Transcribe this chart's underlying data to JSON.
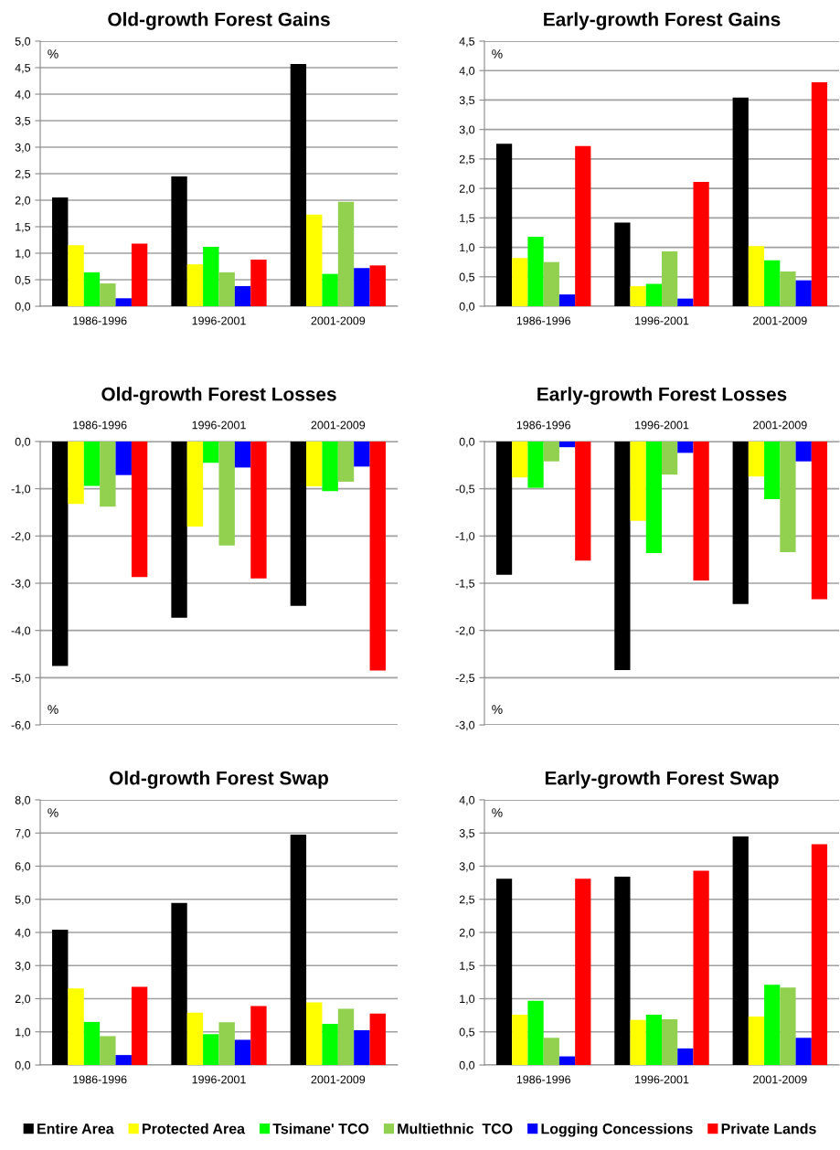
{
  "chart_data": [
    {
      "type": "bar",
      "title": "Old-growth Forest Gains",
      "categories": [
        "1986-1996",
        "1996-2001",
        "2001-2009"
      ],
      "annotations": [
        "%"
      ],
      "ylim": [
        0,
        5
      ],
      "yticks": [
        {
          "value": 0,
          "label": "0,0"
        },
        {
          "value": 0.5,
          "label": "0,5"
        },
        {
          "value": 1,
          "label": "1,0"
        },
        {
          "value": 1.5,
          "label": "1,5"
        },
        {
          "value": 2,
          "label": "2,0"
        },
        {
          "value": 2.5,
          "label": "2,5"
        },
        {
          "value": 3,
          "label": "3,0"
        },
        {
          "value": 3.5,
          "label": "3,5"
        },
        {
          "value": 4,
          "label": "4,0"
        },
        {
          "value": 4.5,
          "label": "4,5"
        },
        {
          "value": 5,
          "label": "5,0"
        }
      ],
      "grid": "y",
      "series": [
        {
          "color": "#000000",
          "values": [
            2.05,
            2.45,
            4.57
          ]
        },
        {
          "color": "#ffff00",
          "values": [
            1.15,
            0.79,
            1.73
          ]
        },
        {
          "color": "#00ff00",
          "values": [
            0.64,
            1.12,
            0.61
          ]
        },
        {
          "color": "#92d050",
          "values": [
            0.43,
            0.64,
            1.97
          ]
        },
        {
          "color": "#0000ff",
          "values": [
            0.15,
            0.38,
            0.72
          ]
        },
        {
          "color": "#ff0000",
          "values": [
            1.18,
            0.88,
            0.77
          ]
        }
      ]
    },
    {
      "type": "bar",
      "title": "Early-growth Forest Gains",
      "categories": [
        "1986-1996",
        "1996-2001",
        "2001-2009"
      ],
      "annotations": [
        "%"
      ],
      "ylim": [
        0,
        4.5
      ],
      "yticks": [
        {
          "value": 0,
          "label": "0,0"
        },
        {
          "value": 0.5,
          "label": "0,5"
        },
        {
          "value": 1,
          "label": "1,0"
        },
        {
          "value": 1.5,
          "label": "1,5"
        },
        {
          "value": 2,
          "label": "2,0"
        },
        {
          "value": 2.5,
          "label": "2,5"
        },
        {
          "value": 3,
          "label": "3,0"
        },
        {
          "value": 3.5,
          "label": "3,5"
        },
        {
          "value": 4,
          "label": "4,0"
        },
        {
          "value": 4.5,
          "label": "4,5"
        }
      ],
      "grid": "y",
      "series": [
        {
          "color": "#000000",
          "values": [
            2.76,
            1.42,
            3.54
          ]
        },
        {
          "color": "#ffff00",
          "values": [
            0.82,
            0.34,
            1.02
          ]
        },
        {
          "color": "#00ff00",
          "values": [
            1.18,
            0.38,
            0.78
          ]
        },
        {
          "color": "#92d050",
          "values": [
            0.75,
            0.93,
            0.59
          ]
        },
        {
          "color": "#0000ff",
          "values": [
            0.2,
            0.13,
            0.44
          ]
        },
        {
          "color": "#ff0000",
          "values": [
            2.72,
            2.11,
            3.8
          ]
        }
      ]
    },
    {
      "type": "bar",
      "title": "Old-growth Forest Losses",
      "categories": [
        "1986-1996",
        "1996-2001",
        "2001-2009"
      ],
      "annotations": [
        "%"
      ],
      "ylim": [
        -6,
        0
      ],
      "yticks": [
        {
          "value": -6,
          "label": "-6,0"
        },
        {
          "value": -5,
          "label": "-5,0"
        },
        {
          "value": -4,
          "label": "-4,0"
        },
        {
          "value": -3,
          "label": "-3,0"
        },
        {
          "value": -2,
          "label": "-2,0"
        },
        {
          "value": -1,
          "label": "-1,0"
        },
        {
          "value": 0,
          "label": "0,0"
        }
      ],
      "grid": "y",
      "series": [
        {
          "color": "#000000",
          "values": [
            -4.75,
            -3.73,
            -3.48
          ]
        },
        {
          "color": "#ffff00",
          "values": [
            -1.32,
            -1.8,
            -0.95
          ]
        },
        {
          "color": "#00ff00",
          "values": [
            -0.94,
            -0.45,
            -1.05
          ]
        },
        {
          "color": "#92d050",
          "values": [
            -1.38,
            -2.2,
            -0.85
          ]
        },
        {
          "color": "#0000ff",
          "values": [
            -0.71,
            -0.55,
            -0.53
          ]
        },
        {
          "color": "#ff0000",
          "values": [
            -2.87,
            -2.9,
            -4.85
          ]
        }
      ]
    },
    {
      "type": "bar",
      "title": "Early-growth Forest Losses",
      "categories": [
        "1986-1996",
        "1996-2001",
        "2001-2009"
      ],
      "annotations": [
        "%"
      ],
      "ylim": [
        -3,
        0
      ],
      "yticks": [
        {
          "value": -3,
          "label": "-3,0"
        },
        {
          "value": -2.5,
          "label": "-2,5"
        },
        {
          "value": -2,
          "label": "-2,0"
        },
        {
          "value": -1.5,
          "label": "-1,5"
        },
        {
          "value": -1,
          "label": "-1,0"
        },
        {
          "value": -0.5,
          "label": "-0,5"
        },
        {
          "value": 0,
          "label": "0,0"
        }
      ],
      "grid": "y",
      "series": [
        {
          "color": "#000000",
          "values": [
            -1.41,
            -2.42,
            -1.72
          ]
        },
        {
          "color": "#ffff00",
          "values": [
            -0.38,
            -0.84,
            -0.37
          ]
        },
        {
          "color": "#00ff00",
          "values": [
            -0.49,
            -1.18,
            -0.61
          ]
        },
        {
          "color": "#92d050",
          "values": [
            -0.21,
            -0.35,
            -1.17
          ]
        },
        {
          "color": "#0000ff",
          "values": [
            -0.06,
            -0.12,
            -0.21
          ]
        },
        {
          "color": "#ff0000",
          "values": [
            -1.26,
            -1.47,
            -1.67
          ]
        }
      ]
    },
    {
      "type": "bar",
      "title": "Old-growth Forest Swap",
      "categories": [
        "1986-1996",
        "1996-2001",
        "2001-2009"
      ],
      "annotations": [
        "%"
      ],
      "ylim": [
        0,
        8
      ],
      "yticks": [
        {
          "value": 0,
          "label": "0,0"
        },
        {
          "value": 1,
          "label": "1,0"
        },
        {
          "value": 2,
          "label": "2,0"
        },
        {
          "value": 3,
          "label": "3,0"
        },
        {
          "value": 4,
          "label": "4,0"
        },
        {
          "value": 5,
          "label": "5,0"
        },
        {
          "value": 6,
          "label": "6,0"
        },
        {
          "value": 7,
          "label": "7,0"
        },
        {
          "value": 8,
          "label": "8,0"
        }
      ],
      "grid": "y",
      "series": [
        {
          "color": "#000000",
          "values": [
            4.08,
            4.89,
            6.95
          ]
        },
        {
          "color": "#ffff00",
          "values": [
            2.31,
            1.58,
            1.89
          ]
        },
        {
          "color": "#00ff00",
          "values": [
            1.3,
            0.93,
            1.24
          ]
        },
        {
          "color": "#92d050",
          "values": [
            0.87,
            1.29,
            1.7
          ]
        },
        {
          "color": "#0000ff",
          "values": [
            0.3,
            0.76,
            1.05
          ]
        },
        {
          "color": "#ff0000",
          "values": [
            2.36,
            1.78,
            1.55
          ]
        }
      ]
    },
    {
      "type": "bar",
      "title": "Early-growth Forest Swap",
      "categories": [
        "1986-1996",
        "1996-2001",
        "2001-2009"
      ],
      "annotations": [
        "%"
      ],
      "ylim": [
        0,
        4
      ],
      "yticks": [
        {
          "value": 0,
          "label": "0,0"
        },
        {
          "value": 0.5,
          "label": "0,5"
        },
        {
          "value": 1,
          "label": "1,0"
        },
        {
          "value": 1.5,
          "label": "1,5"
        },
        {
          "value": 2,
          "label": "2,0"
        },
        {
          "value": 2.5,
          "label": "2,5"
        },
        {
          "value": 3,
          "label": "3,0"
        },
        {
          "value": 3.5,
          "label": "3,5"
        },
        {
          "value": 4,
          "label": "4,0"
        }
      ],
      "grid": "y",
      "legend": "bottom",
      "series": [
        {
          "name": "Entire Area",
          "color": "#000000",
          "values": [
            2.81,
            2.84,
            3.45
          ]
        },
        {
          "name": "Protected Area",
          "color": "#ffff00",
          "values": [
            0.76,
            0.68,
            0.73
          ]
        },
        {
          "name": "Tsimane' TCO",
          "color": "#00ff00",
          "values": [
            0.97,
            0.76,
            1.21
          ]
        },
        {
          "name": "Multiethnic  TCO",
          "color": "#92d050",
          "values": [
            0.41,
            0.69,
            1.17
          ]
        },
        {
          "name": "Logging Concessions",
          "color": "#0000ff",
          "values": [
            0.13,
            0.25,
            0.41
          ]
        },
        {
          "name": "Private Lands",
          "color": "#ff0000",
          "values": [
            2.81,
            2.93,
            3.33
          ]
        }
      ]
    }
  ]
}
